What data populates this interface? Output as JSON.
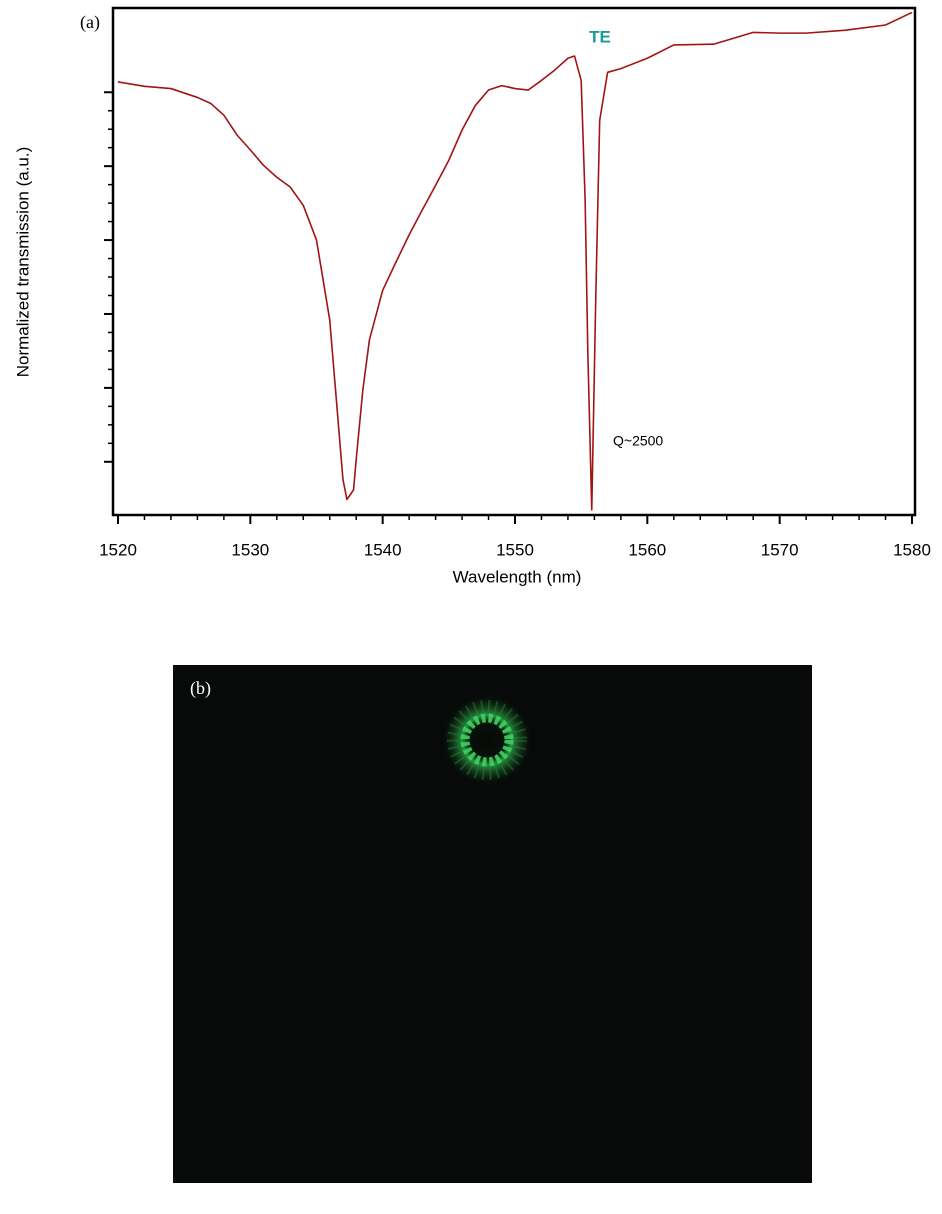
{
  "chart_data": {
    "type": "line",
    "panel_label": "(a)",
    "xlabel": "Wavelength (nm)",
    "ylabel": "Normalized transmission (a.u.)",
    "annotations": [
      "TE",
      "Q~2500"
    ],
    "xlim": [
      1520,
      1580
    ],
    "xticks": [
      1520,
      1530,
      1540,
      1550,
      1560,
      1570,
      1580
    ],
    "ylim": [
      -0.72,
      6.14
    ],
    "yticks": [
      0,
      1,
      2,
      3,
      4,
      5
    ],
    "series": [
      {
        "color": "#a01414",
        "x": [
          1520,
          1522,
          1524,
          1526,
          1527,
          1528,
          1529,
          1530,
          1531,
          1532,
          1533,
          1534,
          1535,
          1536,
          1536.5,
          1537,
          1537.3,
          1537.8,
          1538,
          1538.5,
          1539,
          1540,
          1541,
          1542,
          1543,
          1544,
          1545,
          1546,
          1547,
          1548,
          1549,
          1550,
          1551,
          1552,
          1553,
          1554,
          1554.5,
          1555,
          1555.3,
          1555.5,
          1555.8,
          1556.1,
          1556.4,
          1557,
          1558,
          1560,
          1562,
          1565,
          1568,
          1570,
          1572,
          1575,
          1578,
          1580
        ],
        "values": [
          5.14,
          5.08,
          5.05,
          4.93,
          4.85,
          4.69,
          4.42,
          4.22,
          4.01,
          3.85,
          3.72,
          3.47,
          3.0,
          1.92,
          0.84,
          -0.24,
          -0.51,
          -0.38,
          0.03,
          0.97,
          1.65,
          2.32,
          2.7,
          3.07,
          3.41,
          3.74,
          4.08,
          4.49,
          4.82,
          5.03,
          5.09,
          5.05,
          5.03,
          5.16,
          5.3,
          5.46,
          5.49,
          5.16,
          3.54,
          1.51,
          -0.65,
          2.19,
          4.62,
          5.27,
          5.32,
          5.46,
          5.64,
          5.65,
          5.81,
          5.8,
          5.8,
          5.84,
          5.91,
          6.08
        ]
      }
    ]
  },
  "image_panel": {
    "label": "(b)"
  }
}
